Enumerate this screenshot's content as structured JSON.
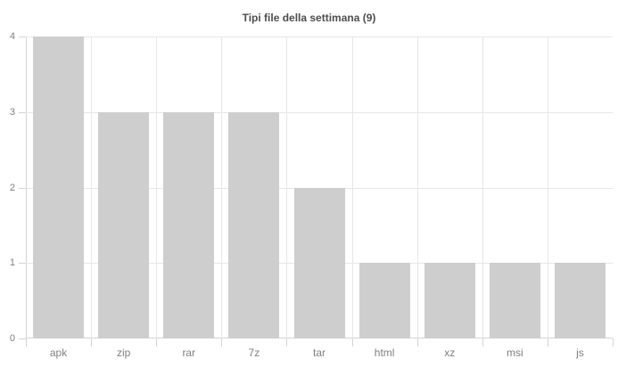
{
  "chart_data": {
    "type": "bar",
    "title": "Tipi file della settimana (9)",
    "categories": [
      "apk",
      "zip",
      "rar",
      "7z",
      "tar",
      "html",
      "xz",
      "msi",
      "js"
    ],
    "values": [
      4,
      3,
      3,
      3,
      2,
      1,
      1,
      1,
      1
    ],
    "xlabel": "",
    "ylabel": "",
    "ylim": [
      0,
      4
    ],
    "yticks": [
      0,
      1,
      2,
      3,
      4
    ],
    "grid": true,
    "legend": false,
    "colors": {
      "bar": "#cecece",
      "grid": "#e7e7e7",
      "axis": "#d4d4d4",
      "title": "#4d4d4d",
      "tick_label": "#7f7f7f",
      "background": "#ffffff"
    }
  }
}
